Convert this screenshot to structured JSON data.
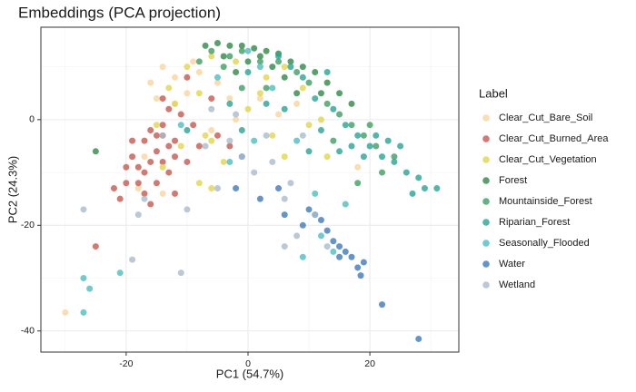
{
  "chart_data": {
    "type": "scatter",
    "title": "Embeddings (PCA projection)",
    "x_label": "PC1 (54.7%)",
    "y_label": "PC2 (24.3%)",
    "legend_title": "Label",
    "xlim": [
      -34,
      34.6
    ],
    "ylim": [
      -44,
      17.5
    ],
    "xticks": [
      -20,
      0,
      20
    ],
    "yticks": [
      -40,
      -20,
      0
    ],
    "grid": true,
    "legend_position": "right",
    "series": [
      {
        "name": "Clear_Cut_Bare_Soil",
        "color": "#f9d59e",
        "x": [
          -30,
          -14,
          -12,
          -10,
          -8,
          -5,
          -3,
          -16,
          -12,
          -18,
          -14,
          -6,
          -2,
          2,
          5,
          18,
          -17,
          -9,
          -15,
          8
        ],
        "y": [
          -36.5,
          10,
          8,
          5,
          9,
          7,
          4,
          7,
          3,
          -13,
          -14,
          -2,
          0,
          4,
          1,
          -9,
          -7,
          11,
          4,
          3
        ]
      },
      {
        "name": "Clear_Cut_Burned_Area",
        "color": "#c8574e",
        "x": [
          -15,
          -14,
          -13,
          -16,
          -17,
          -19,
          -20,
          -12,
          -14,
          -15,
          -18,
          -21,
          -25,
          -22,
          -13,
          -11,
          -10,
          -8,
          -16,
          -13,
          -17,
          -19,
          -12,
          -14,
          -10,
          -6,
          -5,
          -3,
          -9,
          -17,
          -16,
          -20,
          -15,
          -14,
          -18,
          -12
        ],
        "y": [
          -3,
          -1,
          -5,
          -8,
          -10,
          -7,
          -9,
          -4,
          -8,
          -12,
          -12,
          -15,
          -24,
          -13,
          2,
          1,
          -8,
          -5,
          -2,
          -10,
          -4,
          -4,
          -14,
          4,
          8,
          4,
          -3,
          -5,
          -1,
          -14,
          -16,
          -12,
          -6,
          -3,
          -9,
          -7
        ]
      },
      {
        "name": "Clear_Cut_Vegetation",
        "color": "#e2d64a",
        "x": [
          -15,
          -13,
          -10,
          -8,
          -6,
          -4,
          -6,
          -7,
          -11,
          2,
          4,
          6,
          10,
          13,
          9,
          3,
          -2,
          -6,
          -12,
          -8,
          0,
          6,
          12,
          -14
        ],
        "y": [
          -1,
          6,
          10,
          5,
          -4,
          -8,
          -13,
          -3,
          -5,
          5,
          -3,
          -7,
          -1,
          -7,
          6,
          8,
          11,
          12,
          3,
          -12,
          2,
          10,
          0,
          -9
        ]
      },
      {
        "name": "Forest",
        "color": "#2e8a46",
        "x": [
          -7,
          -5,
          -3,
          -1,
          1,
          3,
          5,
          7,
          9,
          11,
          13,
          15,
          17,
          -4,
          0,
          4,
          6,
          -25,
          8,
          -2,
          2,
          12
        ],
        "y": [
          14,
          14.5,
          14,
          14,
          13.5,
          13,
          12.5,
          11,
          10,
          9,
          7,
          5,
          3,
          12,
          11,
          10,
          8,
          -6,
          5,
          9,
          12,
          5
        ]
      },
      {
        "name": "Mountainside_Forest",
        "color": "#3d9f62",
        "x": [
          -6,
          -3,
          -1,
          2,
          5,
          8,
          10,
          13,
          15,
          17,
          19,
          21,
          24,
          14,
          18,
          -4,
          -8,
          -1,
          3,
          20,
          22
        ],
        "y": [
          13,
          12,
          13,
          11,
          11,
          9,
          7,
          3,
          1,
          -1,
          -3,
          -5,
          -7,
          -4,
          -12,
          10,
          11,
          6,
          6,
          -1,
          -10
        ]
      },
      {
        "name": "Riparian_Forest",
        "color": "#25a596",
        "x": [
          5,
          7,
          9,
          11,
          14,
          16,
          18,
          20,
          22,
          24,
          26,
          28,
          29,
          31,
          27,
          23,
          19,
          17,
          21,
          25,
          12,
          3,
          -3,
          -10,
          10,
          15,
          -1,
          6,
          13,
          0
        ],
        "y": [
          12,
          10,
          8,
          4,
          2,
          -1,
          -3,
          -5,
          -7,
          -8,
          -10,
          -11,
          -13,
          -13,
          -14,
          -4,
          -7,
          -5,
          -3,
          -5,
          -2,
          3,
          3,
          -2,
          -6,
          -6,
          -2,
          2,
          9,
          9
        ]
      },
      {
        "name": "Seasonally_Flooded",
        "color": "#4bbec2",
        "x": [
          -27,
          -26,
          -27,
          -21,
          12,
          9,
          -3,
          0,
          2,
          -5,
          8,
          14,
          -11,
          1,
          16,
          4,
          11
        ],
        "y": [
          -30,
          -32,
          -36.5,
          -29,
          -22,
          -26,
          -8,
          13,
          10,
          8,
          -4,
          -25,
          -1,
          -4,
          -16,
          6,
          -14
        ]
      },
      {
        "name": "Water",
        "color": "#3c7bbd",
        "x": [
          -2,
          2,
          5,
          6,
          9,
          10,
          12,
          13,
          14,
          15,
          16,
          17,
          18,
          18.5,
          19,
          22,
          28,
          -1,
          11,
          15
        ],
        "y": [
          -13,
          -15,
          -13,
          -18,
          -20,
          -17,
          -19,
          -21,
          -23,
          -24,
          -25,
          -26,
          -28,
          -29.5,
          -27,
          -35,
          -41.5,
          -7,
          -18,
          -26
        ]
      },
      {
        "name": "Wetland",
        "color": "#a8bccb",
        "x": [
          -27,
          -19,
          -11,
          -18,
          -17,
          -10,
          -5,
          -3,
          -2,
          1,
          6,
          7,
          8,
          6,
          13,
          11,
          -7,
          4,
          -6,
          -14,
          3,
          9,
          -1
        ],
        "y": [
          -17,
          -26.5,
          -29,
          -18,
          -15,
          -17,
          -13,
          -4,
          1,
          -10,
          -15,
          -12,
          -22,
          -24,
          -24,
          -18,
          -5,
          -8,
          2,
          -3,
          -3,
          -3,
          -7
        ]
      }
    ]
  }
}
